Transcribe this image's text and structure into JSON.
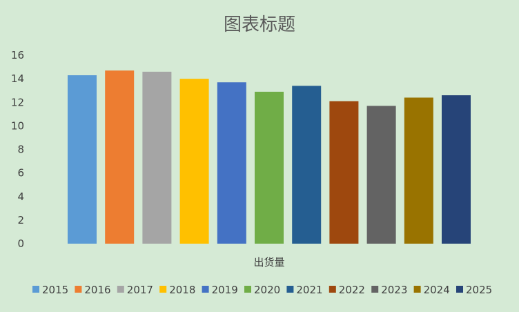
{
  "chart_data": {
    "type": "bar",
    "title": "图表标题",
    "xlabel": "出货量",
    "ylabel": "",
    "ylim": [
      0,
      16
    ],
    "yticks": [
      0,
      2,
      4,
      6,
      8,
      10,
      12,
      14,
      16
    ],
    "grid": false,
    "legend_position": "bottom",
    "categories": [
      "出货量"
    ],
    "series": [
      {
        "name": "2015",
        "values": [
          14.3
        ],
        "color": "#5b9bd5"
      },
      {
        "name": "2016",
        "values": [
          14.7
        ],
        "color": "#ed7d31"
      },
      {
        "name": "2017",
        "values": [
          14.6
        ],
        "color": "#a5a5a5"
      },
      {
        "name": "2018",
        "values": [
          14.0
        ],
        "color": "#ffc000"
      },
      {
        "name": "2019",
        "values": [
          13.7
        ],
        "color": "#4472c4"
      },
      {
        "name": "2020",
        "values": [
          12.9
        ],
        "color": "#70ad47"
      },
      {
        "name": "2021",
        "values": [
          13.4
        ],
        "color": "#255e91"
      },
      {
        "name": "2022",
        "values": [
          12.1
        ],
        "color": "#9e480e"
      },
      {
        "name": "2023",
        "values": [
          11.7
        ],
        "color": "#636363"
      },
      {
        "name": "2024",
        "values": [
          12.4
        ],
        "color": "#997300"
      },
      {
        "name": "2025",
        "values": [
          12.6
        ],
        "color": "#264478"
      }
    ]
  }
}
